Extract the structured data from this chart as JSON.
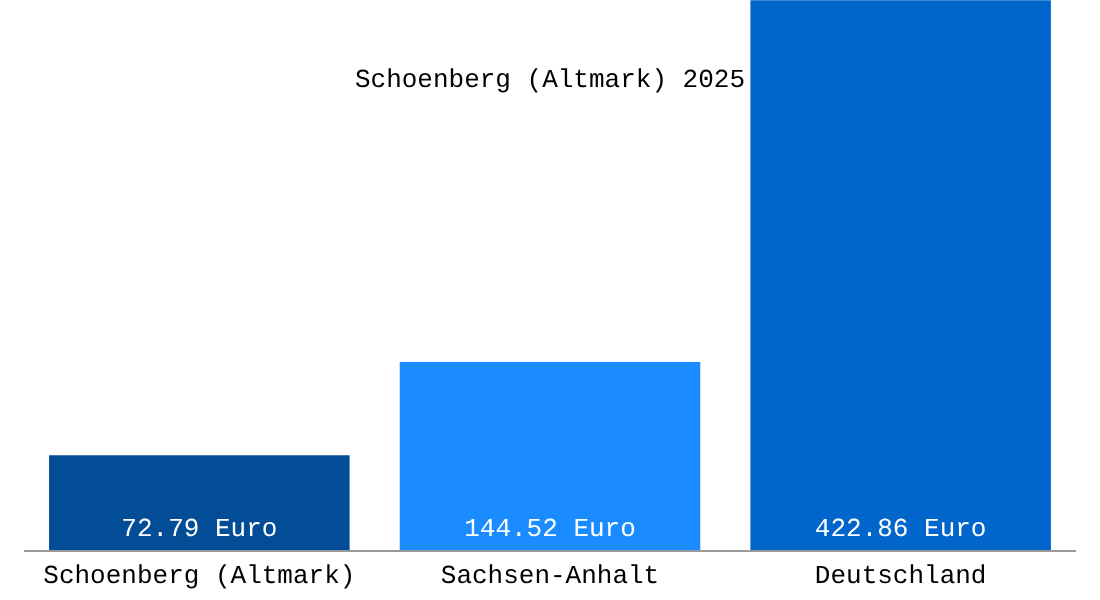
{
  "chart_data": {
    "type": "bar",
    "title": "Schoenberg (Altmark) 2025",
    "categories": [
      "Schoenberg (Altmark)",
      "Sachsen-Anhalt",
      "Deutschland"
    ],
    "values": [
      72.79,
      144.52,
      422.86
    ],
    "colors": [
      "#034d96",
      "#1a8cff",
      "#0066cc"
    ],
    "value_labels": [
      "72.79 Euro",
      "144.52 Euro",
      "422.86 Euro"
    ],
    "ylim": [
      0,
      423
    ],
    "grid": false,
    "legend": false
  }
}
